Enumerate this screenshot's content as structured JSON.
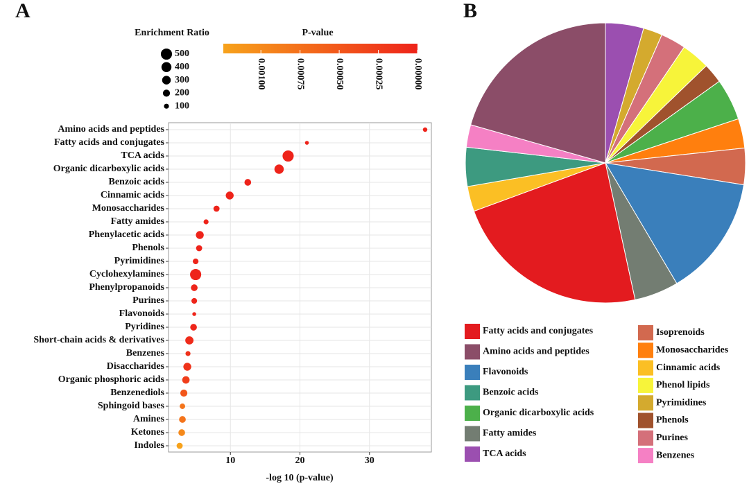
{
  "chart_data": [
    {
      "type": "scatter",
      "panel_label": "A",
      "categories": [
        "Amino acids and peptides",
        "Fatty acids and conjugates",
        "TCA acids",
        "Organic dicarboxylic acids",
        "Benzoic acids",
        "Cinnamic acids",
        "Monosaccharides",
        "Fatty amides",
        "Phenylacetic acids",
        "Phenols",
        "Pyrimidines",
        "Cyclohexylamines",
        "Phenylpropanoids",
        "Purines",
        "Flavonoids",
        "Pyridines",
        "Short-chain acids & derivatives",
        "Benzenes",
        "Disaccharides",
        "Organic phosphoric acids",
        "Benzenediols",
        "Sphingoid bases",
        "Amines",
        "Ketones",
        "Indoles"
      ],
      "values": [
        38.0,
        21.0,
        18.3,
        17.0,
        12.5,
        9.9,
        8.0,
        6.5,
        5.6,
        5.5,
        5.0,
        5.0,
        4.8,
        4.8,
        4.8,
        4.7,
        4.1,
        3.9,
        3.8,
        3.6,
        3.3,
        3.1,
        3.1,
        3.0,
        2.7
      ],
      "sizes": [
        80,
        60,
        500,
        350,
        180,
        250,
        150,
        100,
        250,
        150,
        130,
        500,
        180,
        130,
        60,
        180,
        270,
        100,
        250,
        220,
        200,
        120,
        180,
        180,
        150
      ],
      "xlim": [
        1.1,
        38.9
      ],
      "xticks": [
        10,
        20,
        30
      ],
      "xlabel": "-log 10 (p-value)",
      "grid": true,
      "size_legend": {
        "title": "Enrichment Ratio",
        "values": [
          500,
          400,
          300,
          200,
          100
        ]
      },
      "color_legend": {
        "title": "P-value",
        "lim": [
          0.00124,
          0
        ],
        "colors": [
          "#f7a21b",
          "#ee231a"
        ],
        "ticks": [
          {
            "value": 0.001,
            "label": "0.00100"
          },
          {
            "value": 0.00075,
            "label": "0.00075"
          },
          {
            "value": 0.0005,
            "label": "0.00050"
          },
          {
            "value": 0.00025,
            "label": "0.00025"
          },
          {
            "value": 0,
            "label": "0.00000"
          }
        ]
      }
    },
    {
      "type": "pie",
      "panel_label": "B",
      "categories": [
        "TCA acids",
        "Pyrimidines",
        "Purines",
        "Phenol lipids",
        "Phenols",
        "Organic dicarboxylic acids",
        "Monosaccharides",
        "Isoprenoids",
        "Flavonoids",
        "Fatty amides",
        "Fatty acids and conjugates",
        "Cinnamic acids",
        "Benzoic acids",
        "Benzenes",
        "Amino acids and peptides"
      ],
      "values": [
        4.4,
        2.2,
        2.9,
        3.3,
        2.3,
        4.8,
        3.4,
        4.2,
        14.0,
        5.1,
        22.8,
        2.9,
        4.5,
        2.6,
        20.6
      ],
      "colors": [
        "#9b4fb0",
        "#d4aa2e",
        "#d4707a",
        "#f7f43a",
        "#a0522d",
        "#4cb04a",
        "#ff7f0e",
        "#d2694f",
        "#3a7fbb",
        "#737d72",
        "#e31b1f",
        "#fbbf24",
        "#3d9a80",
        "#f580c4",
        "#8b4d68"
      ],
      "legend_entries": [
        "Fatty acids and conjugates",
        "Amino acids and peptides",
        "Flavonoids",
        "Benzoic acids",
        "Organic dicarboxylic acids",
        "Fatty amides",
        "TCA acids",
        "Isoprenoids",
        "Monosaccharides",
        "Cinnamic acids",
        "Phenol lipids",
        "Pyrimidines",
        "Phenols",
        "Purines",
        "Benzenes"
      ]
    }
  ]
}
